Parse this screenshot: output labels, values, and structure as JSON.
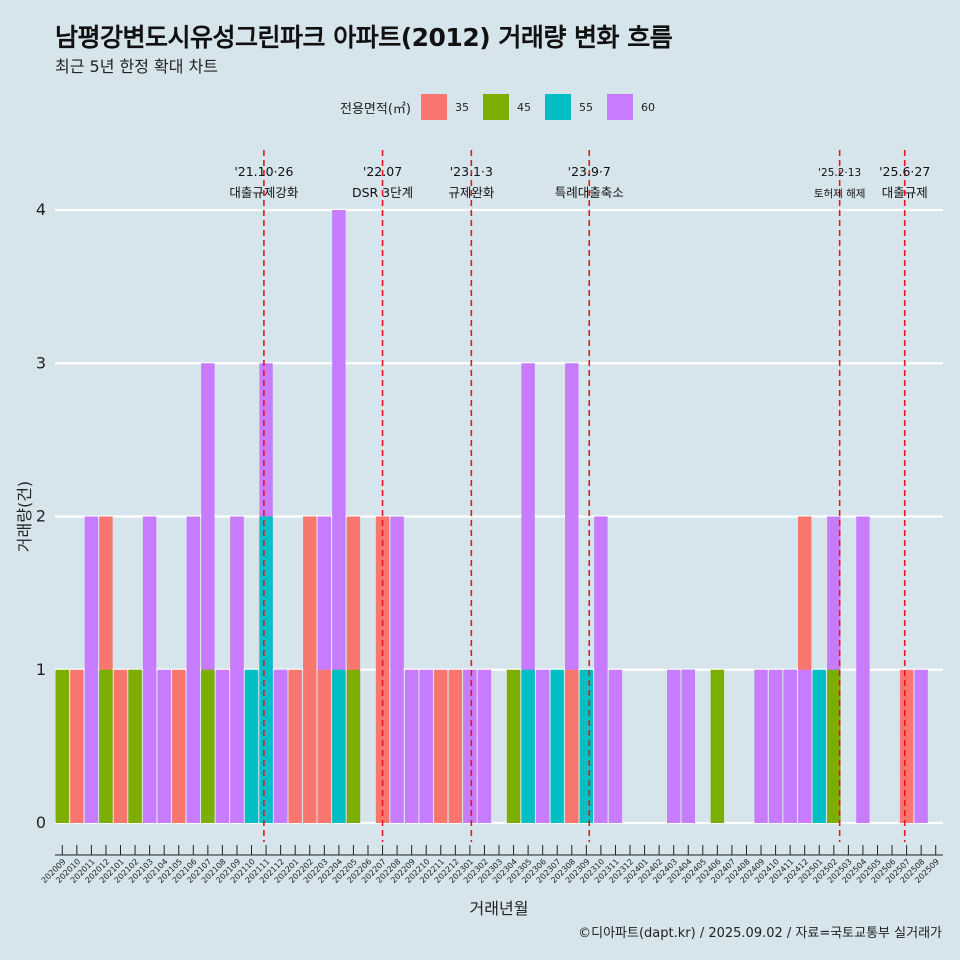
{
  "header": {
    "title": "남평강변도시유성그린파크 아파트(2012) 거래량 변화 흐름",
    "subtitle": "최근 5년 한정 확대 차트"
  },
  "footer": {
    "caption": "©디아파트(dapt.kr) / 2025.09.02 / 자료=국토교통부 실거래가"
  },
  "chart_data": {
    "type": "bar",
    "xlabel": "거래년월",
    "ylabel": "거래량(건)",
    "ylim": [
      0,
      4
    ],
    "yticks": [
      0,
      1,
      2,
      3,
      4
    ],
    "grid": "horizontal",
    "legend_title": "전용면적(㎡)",
    "legend_placement": "top",
    "categories": [
      "202009",
      "202010",
      "202011",
      "202012",
      "202101",
      "202102",
      "202103",
      "202104",
      "202105",
      "202106",
      "202107",
      "202108",
      "202109",
      "202110",
      "202111",
      "202112",
      "202201",
      "202202",
      "202203",
      "202204",
      "202205",
      "202206",
      "202207",
      "202208",
      "202209",
      "202210",
      "202211",
      "202212",
      "202301",
      "202302",
      "202303",
      "202304",
      "202305",
      "202306",
      "202307",
      "202308",
      "202309",
      "202310",
      "202311",
      "202312",
      "202401",
      "202402",
      "202403",
      "202404",
      "202405",
      "202406",
      "202407",
      "202408",
      "202409",
      "202410",
      "202411",
      "202412",
      "202501",
      "202502",
      "202503",
      "202504",
      "202505",
      "202506",
      "202507",
      "202508",
      "202509"
    ],
    "series": [
      {
        "name": "35",
        "color": "#F8766D"
      },
      {
        "name": "45",
        "color": "#7CAE00"
      },
      {
        "name": "55",
        "color": "#00BFC4"
      },
      {
        "name": "60",
        "color": "#C77CFF"
      }
    ],
    "bars": [
      {
        "month": "202009",
        "segments": [
          {
            "series": "45",
            "value": 1
          }
        ]
      },
      {
        "month": "202010",
        "segments": [
          {
            "series": "35",
            "value": 1
          }
        ]
      },
      {
        "month": "202011",
        "segments": [
          {
            "series": "60",
            "value": 2
          }
        ]
      },
      {
        "month": "202012",
        "segments": [
          {
            "series": "35",
            "value": 2
          },
          {
            "series": "45",
            "value": 1
          }
        ]
      },
      {
        "month": "202101",
        "segments": [
          {
            "series": "35",
            "value": 1
          }
        ]
      },
      {
        "month": "202102",
        "segments": [
          {
            "series": "35",
            "value": 1
          },
          {
            "series": "45",
            "value": 1
          }
        ]
      },
      {
        "month": "202103",
        "segments": [
          {
            "series": "60",
            "value": 2
          }
        ]
      },
      {
        "month": "202104",
        "segments": [
          {
            "series": "60",
            "value": 1
          }
        ]
      },
      {
        "month": "202105",
        "segments": [
          {
            "series": "35",
            "value": 1
          }
        ]
      },
      {
        "month": "202106",
        "segments": [
          {
            "series": "60",
            "value": 2
          }
        ]
      },
      {
        "month": "202107",
        "segments": [
          {
            "series": "45",
            "value": 1
          },
          {
            "series": "60",
            "value": 3
          }
        ]
      },
      {
        "month": "202108",
        "segments": [
          {
            "series": "60",
            "value": 1
          }
        ]
      },
      {
        "month": "202109",
        "segments": [
          {
            "series": "35",
            "value": 2
          },
          {
            "series": "60",
            "value": 2
          }
        ]
      },
      {
        "month": "202110",
        "segments": [
          {
            "series": "55",
            "value": 1
          }
        ]
      },
      {
        "month": "202111",
        "segments": [
          {
            "series": "55",
            "value": 2
          },
          {
            "series": "60",
            "value": 3
          }
        ]
      },
      {
        "month": "202112",
        "segments": [
          {
            "series": "55",
            "value": 1
          },
          {
            "series": "60",
            "value": 1
          }
        ]
      },
      {
        "month": "202201",
        "segments": [
          {
            "series": "35",
            "value": 1
          }
        ]
      },
      {
        "month": "202202",
        "segments": [
          {
            "series": "35",
            "value": 2
          }
        ]
      },
      {
        "month": "202203",
        "segments": [
          {
            "series": "35",
            "value": 1
          },
          {
            "series": "60",
            "value": 2
          }
        ]
      },
      {
        "month": "202204",
        "segments": [
          {
            "series": "45",
            "value": 1
          },
          {
            "series": "55",
            "value": 1
          },
          {
            "series": "60",
            "value": 4
          }
        ]
      },
      {
        "month": "202205",
        "segments": [
          {
            "series": "35",
            "value": 2
          },
          {
            "series": "45",
            "value": 1
          }
        ]
      },
      {
        "month": "202206",
        "segments": []
      },
      {
        "month": "202207",
        "segments": [
          {
            "series": "35",
            "value": 2
          }
        ]
      },
      {
        "month": "202208",
        "segments": [
          {
            "series": "60",
            "value": 2
          }
        ]
      },
      {
        "month": "202209",
        "segments": [
          {
            "series": "60",
            "value": 1
          }
        ]
      },
      {
        "month": "202210",
        "segments": [
          {
            "series": "60",
            "value": 1
          }
        ]
      },
      {
        "month": "202211",
        "segments": [
          {
            "series": "35",
            "value": 1
          }
        ]
      },
      {
        "month": "202212",
        "segments": [
          {
            "series": "35",
            "value": 1
          }
        ]
      },
      {
        "month": "202301",
        "segments": [
          {
            "series": "35",
            "value": 1
          },
          {
            "series": "60",
            "value": 1
          }
        ]
      },
      {
        "month": "202302",
        "segments": [
          {
            "series": "60",
            "value": 1
          }
        ]
      },
      {
        "month": "202303",
        "segments": []
      },
      {
        "month": "202304",
        "segments": [
          {
            "series": "45",
            "value": 1
          }
        ]
      },
      {
        "month": "202305",
        "segments": [
          {
            "series": "55",
            "value": 1
          },
          {
            "series": "60",
            "value": 3
          }
        ]
      },
      {
        "month": "202306",
        "segments": [
          {
            "series": "60",
            "value": 1
          }
        ]
      },
      {
        "month": "202307",
        "segments": [
          {
            "series": "55",
            "value": 1
          }
        ]
      },
      {
        "month": "202308",
        "segments": [
          {
            "series": "35",
            "value": 1
          },
          {
            "series": "60",
            "value": 3
          }
        ]
      },
      {
        "month": "202309",
        "segments": [
          {
            "series": "55",
            "value": 1
          }
        ]
      },
      {
        "month": "202310",
        "segments": [
          {
            "series": "60",
            "value": 2
          }
        ]
      },
      {
        "month": "202311",
        "segments": [
          {
            "series": "60",
            "value": 1
          }
        ]
      },
      {
        "month": "202312",
        "segments": []
      },
      {
        "month": "202401",
        "segments": []
      },
      {
        "month": "202402",
        "segments": []
      },
      {
        "month": "202403",
        "segments": [
          {
            "series": "60",
            "value": 1
          }
        ]
      },
      {
        "month": "202404",
        "segments": [
          {
            "series": "35",
            "value": 1
          },
          {
            "series": "55",
            "value": 1
          },
          {
            "series": "60",
            "value": 1
          }
        ]
      },
      {
        "month": "202405",
        "segments": []
      },
      {
        "month": "202406",
        "segments": [
          {
            "series": "45",
            "value": 1
          }
        ]
      },
      {
        "month": "202407",
        "segments": []
      },
      {
        "month": "202408",
        "segments": []
      },
      {
        "month": "202409",
        "segments": [
          {
            "series": "60",
            "value": 1
          }
        ]
      },
      {
        "month": "202410",
        "segments": [
          {
            "series": "60",
            "value": 1
          }
        ]
      },
      {
        "month": "202411",
        "segments": [
          {
            "series": "55",
            "value": 1
          },
          {
            "series": "60",
            "value": 1
          }
        ]
      },
      {
        "month": "202412",
        "segments": [
          {
            "series": "35",
            "value": 2
          },
          {
            "series": "60",
            "value": 1
          }
        ]
      },
      {
        "month": "202501",
        "segments": [
          {
            "series": "55",
            "value": 1
          }
        ]
      },
      {
        "month": "202502",
        "segments": [
          {
            "series": "45",
            "value": 1
          },
          {
            "series": "60",
            "value": 2
          }
        ]
      },
      {
        "month": "202503",
        "segments": []
      },
      {
        "month": "202504",
        "segments": [
          {
            "series": "60",
            "value": 2
          }
        ]
      },
      {
        "month": "202505",
        "segments": []
      },
      {
        "month": "202506",
        "segments": []
      },
      {
        "month": "202507",
        "segments": [
          {
            "series": "35",
            "value": 1
          }
        ]
      },
      {
        "month": "202508",
        "segments": [
          {
            "series": "60",
            "value": 1
          }
        ]
      },
      {
        "month": "202509",
        "segments": []
      }
    ],
    "annotations": [
      {
        "date_label": "'21.10·26",
        "text": "대출규제강화",
        "position": 202110.85
      },
      {
        "date_label": "'22.07",
        "text": "DSR 3단계",
        "position": 202207
      },
      {
        "date_label": "'23.1·3",
        "text": "규제완화",
        "position": 202301.1
      },
      {
        "date_label": "'23.9·7",
        "text": "특례대출축소",
        "position": 202309.2
      },
      {
        "date_label": "'25.2·13",
        "text": "토허제 해제",
        "position": 202502.4,
        "small": true
      },
      {
        "date_label": "'25.6·27",
        "text": "대출규제",
        "position": 202506.87
      }
    ]
  }
}
